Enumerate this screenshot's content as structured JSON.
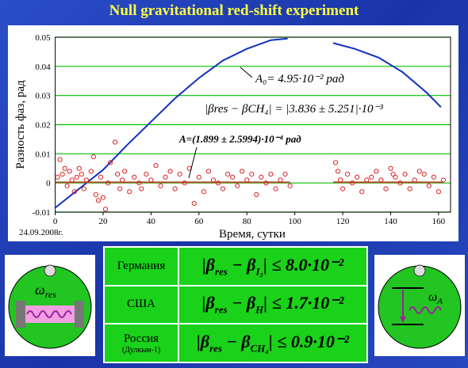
{
  "slide_title": "Null gravitational red-shift experiment",
  "chart_data": {
    "type": "scatter",
    "y_label": "Разность фаз, рад",
    "x_label": "Время, сутки",
    "date_note": "24.09.2008г.",
    "annotations": {
      "amplitude": "A₀= 4.95·10⁻² рад",
      "difference": "|βres − βCH₄| = |3.836 ± 5.251|·10⁻³",
      "fit": "A=(1.899 ± 2.5994)·10⁻⁴ рад"
    },
    "xlim": [
      0,
      165
    ],
    "ylim": [
      -0.01,
      0.05
    ],
    "xticks": [
      0,
      20,
      40,
      60,
      80,
      100,
      120,
      140,
      160
    ],
    "yticks": [
      -0.01,
      0,
      0.01,
      0.02,
      0.03,
      0.04,
      0.05
    ],
    "grid": true,
    "grid_color": "#00c000",
    "series": [
      {
        "type": "line",
        "color": "#1030c0",
        "x": [
          0,
          10,
          20,
          30,
          40,
          50,
          60,
          70,
          80,
          90,
          97,
          106,
          116,
          125,
          135,
          145,
          155,
          161
        ],
        "values": [
          -0.0085,
          -0.002,
          0.0045,
          0.013,
          0.021,
          0.029,
          0.036,
          0.042,
          0.046,
          0.049,
          0.0495,
          null,
          0.048,
          0.046,
          0.043,
          0.038,
          0.031,
          0.026
        ]
      },
      {
        "type": "line",
        "color": "#a05020",
        "x": [
          0,
          98,
          107,
          116,
          162
        ],
        "values": [
          0.0002,
          0.0002,
          null,
          0.0002,
          0.0002
        ]
      },
      {
        "type": "scatter",
        "color": "#e02020",
        "x": [
          1,
          2,
          3,
          4,
          5,
          6,
          7,
          8,
          9,
          10,
          11,
          12,
          13,
          15,
          16,
          17,
          18,
          19,
          20,
          21,
          22,
          23,
          25,
          26,
          27,
          28,
          29,
          31,
          33,
          35,
          36,
          38,
          40,
          42,
          44,
          46,
          48,
          50,
          52,
          54,
          56,
          58,
          60,
          62,
          64,
          66,
          68,
          70,
          72,
          74,
          76,
          78,
          80,
          82,
          84,
          86,
          88,
          90,
          92,
          94,
          96,
          98,
          117,
          118,
          119,
          120,
          122,
          124,
          126,
          128,
          130,
          132,
          134,
          136,
          138,
          140,
          141,
          142,
          144,
          146,
          148,
          150,
          152,
          154,
          156,
          158,
          160,
          162
        ],
        "values": [
          0.002,
          0.008,
          0.003,
          0.005,
          -0.001,
          0.004,
          0.001,
          -0.003,
          0.002,
          0.005,
          0.003,
          -0.002,
          0.001,
          0.004,
          0.009,
          -0.004,
          -0.006,
          0.002,
          -0.005,
          -0.009,
          0.0,
          0.007,
          0.014,
          0.003,
          -0.002,
          0.001,
          0.004,
          -0.003,
          0.002,
          0.0,
          -0.002,
          0.003,
          0.001,
          0.006,
          -0.001,
          0.002,
          0.004,
          -0.002,
          0.003,
          0.0,
          0.005,
          -0.007,
          0.002,
          -0.003,
          0.004,
          0.001,
          0.0,
          -0.002,
          0.003,
          0.002,
          -0.001,
          0.004,
          0.001,
          0.003,
          -0.004,
          0.002,
          0.0,
          0.003,
          -0.002,
          0.001,
          0.003,
          -0.001,
          0.007,
          0.004,
          0.001,
          -0.002,
          0.003,
          0.0,
          0.002,
          -0.003,
          0.001,
          0.002,
          0.004,
          0.001,
          -0.002,
          0.005,
          0.003,
          0.002,
          0.0,
          0.003,
          -0.002,
          0.001,
          0.004,
          0.003,
          -0.001,
          0.002,
          -0.003,
          0.001
        ]
      }
    ]
  },
  "table": {
    "rows": [
      {
        "country": "Германия",
        "sub_a": "res",
        "sub_b": "I₂",
        "bound": "≤ 8.0·10⁻²"
      },
      {
        "country": "США",
        "sub_a": "res",
        "sub_b": "H",
        "bound": "≤ 1.7·10⁻²"
      },
      {
        "country": "Россия",
        "note": "(Дулкын-1)",
        "sub_a": "res",
        "sub_b": "CH₄",
        "bound": "≤ 0.9·10⁻²"
      }
    ]
  },
  "icons": {
    "left": {
      "symbol": "ω",
      "sub": "res"
    },
    "right": {
      "symbol": "ω",
      "sub": "A"
    }
  }
}
